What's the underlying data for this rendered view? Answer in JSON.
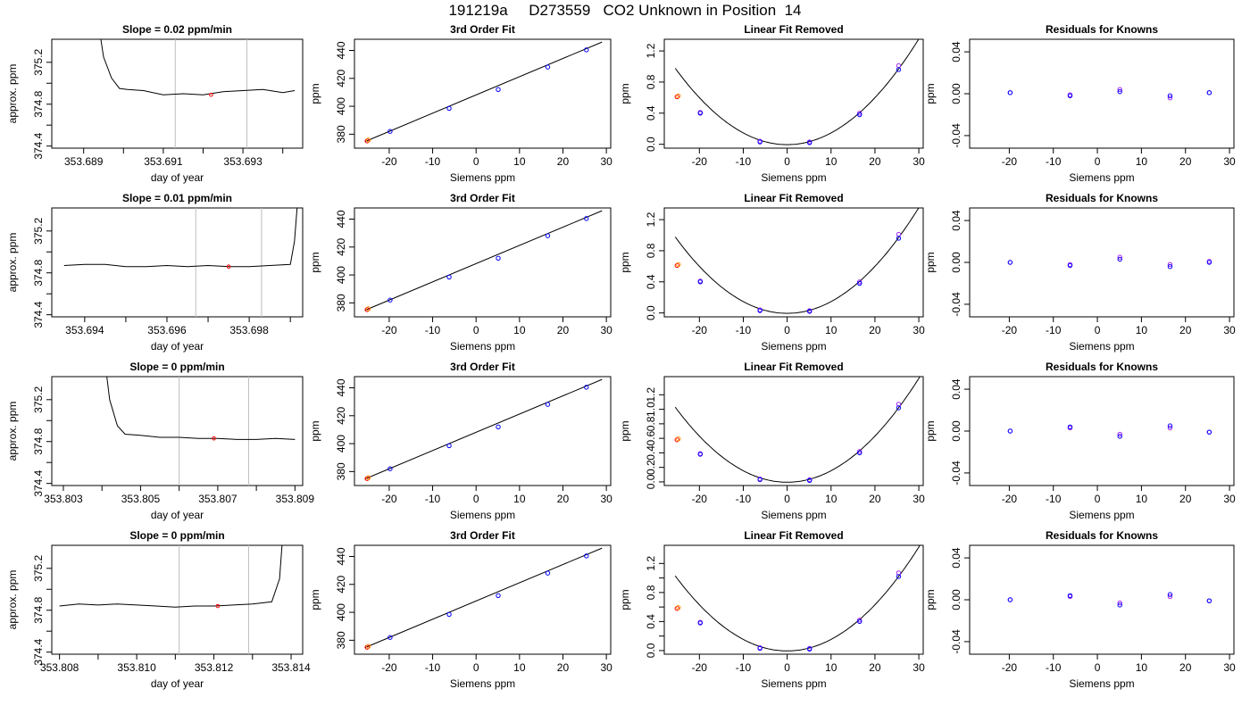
{
  "figure": {
    "title": "191219a     D273559   CO2 Unknown in Position  14"
  },
  "colors": {
    "trace": "#000000",
    "axis": "#000000",
    "cursor_line": "#bebebe",
    "known_point": "#0000ff",
    "unknown_point": "#ff0000",
    "residual_alt_point": "#a020f0"
  },
  "chart_data": [
    {
      "type": "line",
      "panel": "trace-row1",
      "title": "Slope =  0.02  ppm/min",
      "xlabel": "day of year",
      "ylabel": "approx. ppm",
      "xlim": [
        353.6882,
        353.6945
      ],
      "ylim": [
        374.38,
        375.42
      ],
      "xticks": [
        353.689,
        353.69,
        353.691,
        353.692,
        353.693,
        353.694
      ],
      "xtick_labels": [
        "353.689",
        "",
        "353.691",
        "",
        "353.693",
        ""
      ],
      "yticks": [
        374.4,
        374.6,
        374.8,
        375.0,
        375.2
      ],
      "ytick_labels": [
        "374.4",
        "",
        "374.8",
        "",
        "375.2"
      ],
      "cursor_lines": [
        353.6913,
        353.6931
      ],
      "marker": {
        "x": 353.6922,
        "y": 374.89
      },
      "series": [
        {
          "x": [
            353.6894,
            353.6895,
            353.6897,
            353.6899,
            353.6901,
            353.6905,
            353.691,
            353.6915,
            353.692,
            353.6925,
            353.693,
            353.6935,
            353.694,
            353.6943
          ],
          "y": [
            375.5,
            375.25,
            375.05,
            374.95,
            374.94,
            374.93,
            374.89,
            374.9,
            374.89,
            374.92,
            374.93,
            374.94,
            374.91,
            374.93
          ]
        }
      ]
    },
    {
      "type": "scatter",
      "panel": "fit-row1",
      "title": "3rd Order Fit",
      "xlabel": "Siemens ppm",
      "ylabel": "ppm",
      "xlim": [
        -28,
        31
      ],
      "ylim": [
        370,
        448
      ],
      "xticks": [
        -20,
        -10,
        0,
        10,
        20,
        30
      ],
      "yticks": [
        380,
        400,
        420,
        440
      ],
      "known_points": {
        "x": [
          -19.8,
          -6.2,
          5.1,
          16.5,
          25.4
        ],
        "y": [
          382.0,
          398.5,
          412.0,
          428.1,
          440.4
        ]
      },
      "unknown_point": {
        "x": -25.1,
        "y": 375.2
      },
      "fit_line": {
        "x": [
          -25.5,
          29.0
        ],
        "y": [
          374.8,
          446.0
        ]
      }
    },
    {
      "type": "scatter",
      "panel": "linfit-row1",
      "title": "Linear Fit Removed",
      "xlabel": "Siemens ppm",
      "ylabel": "ppm",
      "xlim": [
        -28,
        31
      ],
      "ylim": [
        -0.05,
        1.35
      ],
      "xticks": [
        -20,
        -10,
        0,
        10,
        20,
        30
      ],
      "yticks": [
        0.0,
        0.4,
        0.8,
        1.2
      ],
      "ytick_labels": [
        "0.0",
        "0.4",
        "0.8",
        "1.2"
      ],
      "known_points": {
        "x": [
          -19.8,
          -6.2,
          5.1,
          16.5,
          25.4
        ],
        "y": [
          0.4,
          0.03,
          0.02,
          0.38,
          0.96
        ]
      },
      "alt_points": {
        "x": [
          -19.8,
          -6.2,
          5.1,
          16.5,
          25.4
        ],
        "y": [
          0.41,
          0.04,
          0.03,
          0.4,
          1.01
        ]
      },
      "unknown_point": {
        "x": -25.1,
        "y": 0.61
      },
      "fit_curve": {
        "a": 0.00151,
        "b": 0.0,
        "c": -0.005
      }
    },
    {
      "type": "scatter",
      "panel": "resid-row1",
      "title": "Residuals for Knowns",
      "xlabel": "Siemens ppm",
      "ylabel": "ppm",
      "xlim": [
        -29,
        31
      ],
      "ylim": [
        -0.052,
        0.052
      ],
      "xticks": [
        -20,
        -10,
        0,
        10,
        20,
        30
      ],
      "yticks": [
        -0.04,
        0.0,
        0.04
      ],
      "ytick_labels": [
        "-0.04",
        "0.00",
        "0.04"
      ],
      "known_points": {
        "x": [
          -19.8,
          -6.2,
          5.1,
          16.5,
          25.4
        ],
        "y": [
          0.001,
          -0.002,
          0.002,
          -0.002,
          0.001
        ]
      },
      "alt_points": {
        "x": [
          -19.8,
          -6.2,
          5.1,
          16.5,
          25.4
        ],
        "y": [
          0.001,
          -0.001,
          0.004,
          -0.004,
          0.001
        ]
      }
    },
    {
      "type": "line",
      "panel": "trace-row2",
      "title": "Slope =  0.01  ppm/min",
      "xlabel": "day of year",
      "ylabel": "approx. ppm",
      "xlim": [
        353.6932,
        353.6993
      ],
      "ylim": [
        374.38,
        375.42
      ],
      "xticks": [
        353.694,
        353.695,
        353.696,
        353.697,
        353.698,
        353.699
      ],
      "xtick_labels": [
        "353.694",
        "",
        "353.696",
        "",
        "353.698",
        ""
      ],
      "yticks": [
        374.4,
        374.6,
        374.8,
        375.0,
        375.2
      ],
      "ytick_labels": [
        "374.4",
        "",
        "374.8",
        "",
        "375.2"
      ],
      "cursor_lines": [
        353.6967,
        353.6983
      ],
      "marker": {
        "x": 353.6975,
        "y": 374.86
      },
      "series": [
        {
          "x": [
            353.6935,
            353.694,
            353.6945,
            353.695,
            353.6955,
            353.696,
            353.6965,
            353.697,
            353.6975,
            353.698,
            353.6985,
            353.699,
            353.6991,
            353.6992
          ],
          "y": [
            374.87,
            374.88,
            374.88,
            374.86,
            374.86,
            374.87,
            374.86,
            374.87,
            374.86,
            374.86,
            374.87,
            374.88,
            375.1,
            375.6
          ]
        }
      ]
    },
    {
      "type": "scatter",
      "panel": "fit-row2",
      "title": "3rd Order Fit",
      "xlabel": "Siemens ppm",
      "ylabel": "ppm",
      "xlim": [
        -28,
        31
      ],
      "ylim": [
        370,
        448
      ],
      "xticks": [
        -20,
        -10,
        0,
        10,
        20,
        30
      ],
      "yticks": [
        380,
        400,
        420,
        440
      ],
      "known_points": {
        "x": [
          -19.8,
          -6.2,
          5.1,
          16.5,
          25.4
        ],
        "y": [
          382.0,
          398.5,
          412.0,
          428.1,
          440.4
        ]
      },
      "unknown_point": {
        "x": -25.1,
        "y": 375.2
      },
      "fit_line": {
        "x": [
          -25.5,
          29.0
        ],
        "y": [
          374.8,
          446.0
        ]
      }
    },
    {
      "type": "scatter",
      "panel": "linfit-row2",
      "title": "Linear Fit Removed",
      "xlabel": "Siemens ppm",
      "ylabel": "ppm",
      "xlim": [
        -28,
        31
      ],
      "ylim": [
        -0.05,
        1.35
      ],
      "xticks": [
        -20,
        -10,
        0,
        10,
        20,
        30
      ],
      "yticks": [
        0.0,
        0.4,
        0.8,
        1.2
      ],
      "ytick_labels": [
        "0.0",
        "0.4",
        "0.8",
        "1.2"
      ],
      "known_points": {
        "x": [
          -19.8,
          -6.2,
          5.1,
          16.5,
          25.4
        ],
        "y": [
          0.4,
          0.03,
          0.02,
          0.38,
          0.96
        ]
      },
      "alt_points": {
        "x": [
          -19.8,
          -6.2,
          5.1,
          16.5,
          25.4
        ],
        "y": [
          0.41,
          0.04,
          0.03,
          0.4,
          1.01
        ]
      },
      "unknown_point": {
        "x": -25.1,
        "y": 0.61
      },
      "fit_curve": {
        "a": 0.00151,
        "b": 0.0,
        "c": -0.005
      }
    },
    {
      "type": "scatter",
      "panel": "resid-row2",
      "title": "Residuals for Knowns",
      "xlabel": "Siemens ppm",
      "ylabel": "ppm",
      "xlim": [
        -29,
        31
      ],
      "ylim": [
        -0.052,
        0.052
      ],
      "xticks": [
        -20,
        -10,
        0,
        10,
        20,
        30
      ],
      "yticks": [
        -0.04,
        0.0,
        0.04
      ],
      "ytick_labels": [
        "-0.04",
        "0.00",
        "0.04"
      ],
      "known_points": {
        "x": [
          -19.8,
          -6.2,
          5.1,
          16.5,
          25.4
        ],
        "y": [
          0.0,
          -0.003,
          0.003,
          -0.004,
          0.0
        ]
      },
      "alt_points": {
        "x": [
          -19.8,
          -6.2,
          5.1,
          16.5,
          25.4
        ],
        "y": [
          0.0,
          -0.002,
          0.005,
          -0.002,
          0.001
        ]
      }
    },
    {
      "type": "line",
      "panel": "trace-row3",
      "title": "Slope =  0  ppm/min",
      "xlabel": "day of year",
      "ylabel": "approx. ppm",
      "xlim": [
        353.8027,
        353.8092
      ],
      "ylim": [
        374.38,
        375.42
      ],
      "xticks": [
        353.803,
        353.804,
        353.805,
        353.806,
        353.807,
        353.808,
        353.809
      ],
      "xtick_labels": [
        "353.803",
        "",
        "353.805",
        "",
        "353.807",
        "",
        "353.809"
      ],
      "yticks": [
        374.4,
        374.6,
        374.8,
        375.0,
        375.2
      ],
      "ytick_labels": [
        "374.4",
        "",
        "374.8",
        "",
        "375.2"
      ],
      "cursor_lines": [
        353.806,
        353.8078
      ],
      "marker": {
        "x": 353.8069,
        "y": 374.83
      },
      "series": [
        {
          "x": [
            353.8041,
            353.8042,
            353.8044,
            353.8046,
            353.805,
            353.8055,
            353.806,
            353.8065,
            353.807,
            353.8075,
            353.808,
            353.8085,
            353.809
          ],
          "y": [
            375.5,
            375.2,
            374.95,
            374.87,
            374.86,
            374.84,
            374.84,
            374.83,
            374.83,
            374.82,
            374.82,
            374.83,
            374.82
          ]
        }
      ]
    },
    {
      "type": "scatter",
      "panel": "fit-row3",
      "title": "3rd Order Fit",
      "xlabel": "Siemens ppm",
      "ylabel": "ppm",
      "xlim": [
        -28,
        31
      ],
      "ylim": [
        370,
        448
      ],
      "xticks": [
        -20,
        -10,
        0,
        10,
        20,
        30
      ],
      "yticks": [
        380,
        400,
        420,
        440
      ],
      "known_points": {
        "x": [
          -19.8,
          -6.2,
          5.1,
          16.5,
          25.4
        ],
        "y": [
          382.0,
          398.5,
          412.0,
          428.1,
          440.4
        ]
      },
      "unknown_point": {
        "x": -25.1,
        "y": 375.0
      },
      "fit_line": {
        "x": [
          -25.5,
          29.0
        ],
        "y": [
          374.8,
          446.0
        ]
      }
    },
    {
      "type": "scatter",
      "panel": "linfit-row3",
      "title": "Linear Fit Removed",
      "xlabel": "Siemens ppm",
      "ylabel": "ppm",
      "xlim": [
        -28,
        31
      ],
      "ylim": [
        -0.05,
        1.45
      ],
      "xticks": [
        -20,
        -10,
        0,
        10,
        20,
        30
      ],
      "yticks": [
        0.0,
        0.2,
        0.4,
        0.6,
        0.8,
        1.0,
        1.2
      ],
      "ytick_labels": [
        "0.0",
        "0.2",
        "0.4",
        "0.6",
        "0.8",
        "1.0",
        "1.2"
      ],
      "known_points": {
        "x": [
          -19.8,
          -6.2,
          5.1,
          16.5,
          25.4
        ],
        "y": [
          0.38,
          0.03,
          0.02,
          0.4,
          1.02
        ]
      },
      "alt_points": {
        "x": [
          -19.8,
          -6.2,
          5.1,
          16.5,
          25.4
        ],
        "y": [
          0.39,
          0.04,
          0.03,
          0.42,
          1.07
        ]
      },
      "unknown_point": {
        "x": -25.1,
        "y": 0.58
      },
      "fit_curve": {
        "a": 0.00159,
        "b": 0.0,
        "c": -0.005
      }
    },
    {
      "type": "scatter",
      "panel": "resid-row3",
      "title": "Residuals for Knowns",
      "xlabel": "Siemens ppm",
      "ylabel": "ppm",
      "xlim": [
        -29,
        31
      ],
      "ylim": [
        -0.052,
        0.052
      ],
      "xticks": [
        -20,
        -10,
        0,
        10,
        20,
        30
      ],
      "yticks": [
        -0.04,
        0.0,
        0.04
      ],
      "ytick_labels": [
        "-0.04",
        "0.00",
        "0.04"
      ],
      "known_points": {
        "x": [
          -19.8,
          -6.2,
          5.1,
          16.5,
          25.4
        ],
        "y": [
          0.0,
          0.004,
          -0.005,
          0.005,
          -0.001
        ]
      },
      "alt_points": {
        "x": [
          -19.8,
          -6.2,
          5.1,
          16.5,
          25.4
        ],
        "y": [
          0.0,
          0.003,
          -0.003,
          0.003,
          -0.001
        ]
      }
    },
    {
      "type": "line",
      "panel": "trace-row4",
      "title": "Slope =  0  ppm/min",
      "xlabel": "day of year",
      "ylabel": "approx. ppm",
      "xlim": [
        353.8078,
        353.8143
      ],
      "ylim": [
        374.38,
        375.42
      ],
      "xticks": [
        353.808,
        353.809,
        353.81,
        353.811,
        353.812,
        353.813,
        353.814
      ],
      "xtick_labels": [
        "353.808",
        "",
        "353.810",
        "",
        "353.812",
        "",
        "353.814"
      ],
      "yticks": [
        374.4,
        374.6,
        374.8,
        375.0,
        375.2
      ],
      "ytick_labels": [
        "374.4",
        "",
        "374.8",
        "",
        "375.2"
      ],
      "cursor_lines": [
        353.8111,
        353.8129
      ],
      "marker": {
        "x": 353.8121,
        "y": 374.84
      },
      "series": [
        {
          "x": [
            353.808,
            353.8085,
            353.809,
            353.8095,
            353.81,
            353.8105,
            353.811,
            353.8115,
            353.812,
            353.8125,
            353.813,
            353.8135,
            353.8137,
            353.8138
          ],
          "y": [
            374.84,
            374.86,
            374.85,
            374.86,
            374.85,
            374.84,
            374.83,
            374.84,
            374.84,
            374.85,
            374.86,
            374.88,
            375.1,
            375.6
          ]
        }
      ]
    },
    {
      "type": "scatter",
      "panel": "fit-row4",
      "title": "3rd Order Fit",
      "xlabel": "Siemens ppm",
      "ylabel": "ppm",
      "xlim": [
        -28,
        31
      ],
      "ylim": [
        370,
        448
      ],
      "xticks": [
        -20,
        -10,
        0,
        10,
        20,
        30
      ],
      "yticks": [
        380,
        400,
        420,
        440
      ],
      "known_points": {
        "x": [
          -19.8,
          -6.2,
          5.1,
          16.5,
          25.4
        ],
        "y": [
          382.0,
          398.5,
          412.0,
          428.1,
          440.4
        ]
      },
      "unknown_point": {
        "x": -25.1,
        "y": 375.0
      },
      "fit_line": {
        "x": [
          -25.5,
          29.0
        ],
        "y": [
          374.8,
          446.0
        ]
      }
    },
    {
      "type": "scatter",
      "panel": "linfit-row4",
      "title": "Linear Fit Removed",
      "xlabel": "Siemens ppm",
      "ylabel": "ppm",
      "xlim": [
        -28,
        31
      ],
      "ylim": [
        -0.05,
        1.45
      ],
      "xticks": [
        -20,
        -10,
        0,
        10,
        20,
        30
      ],
      "yticks": [
        0.0,
        0.2,
        0.4,
        0.6,
        0.8,
        1.0,
        1.2
      ],
      "ytick_labels": [
        "0.0",
        "",
        "0.4",
        "",
        "0.8",
        "",
        "1.2"
      ],
      "known_points": {
        "x": [
          -19.8,
          -6.2,
          5.1,
          16.5,
          25.4
        ],
        "y": [
          0.38,
          0.03,
          0.02,
          0.4,
          1.02
        ]
      },
      "alt_points": {
        "x": [
          -19.8,
          -6.2,
          5.1,
          16.5,
          25.4
        ],
        "y": [
          0.39,
          0.04,
          0.03,
          0.42,
          1.07
        ]
      },
      "unknown_point": {
        "x": -25.1,
        "y": 0.58
      },
      "fit_curve": {
        "a": 0.00159,
        "b": 0.0,
        "c": -0.005
      }
    },
    {
      "type": "scatter",
      "panel": "resid-row4",
      "title": "Residuals for Knowns",
      "xlabel": "Siemens ppm",
      "ylabel": "ppm",
      "xlim": [
        -29,
        31
      ],
      "ylim": [
        -0.052,
        0.052
      ],
      "xticks": [
        -20,
        -10,
        0,
        10,
        20,
        30
      ],
      "yticks": [
        -0.04,
        0.0,
        0.04
      ],
      "ytick_labels": [
        "-0.04",
        "0.00",
        "0.04"
      ],
      "known_points": {
        "x": [
          -19.8,
          -6.2,
          5.1,
          16.5,
          25.4
        ],
        "y": [
          0.0,
          0.004,
          -0.005,
          0.005,
          -0.001
        ]
      },
      "alt_points": {
        "x": [
          -19.8,
          -6.2,
          5.1,
          16.5,
          25.4
        ],
        "y": [
          0.0,
          0.003,
          -0.003,
          0.003,
          -0.001
        ]
      }
    }
  ]
}
